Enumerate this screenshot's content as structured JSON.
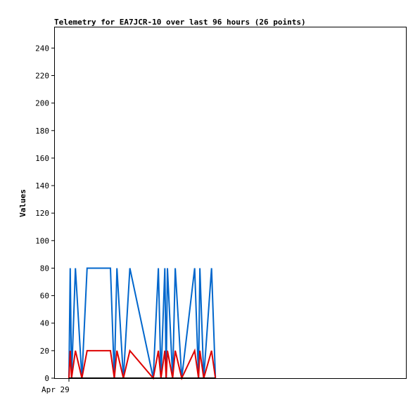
{
  "chart_data": {
    "type": "line",
    "title": "Telemetry for EA7JCR-10 over last 96 hours (26 points)",
    "xlabel": "",
    "ylabel": "Values",
    "ylim": [
      0,
      255
    ],
    "yticks": [
      0,
      20,
      40,
      60,
      80,
      100,
      120,
      140,
      160,
      180,
      200,
      220,
      240
    ],
    "xtick_labels": [
      {
        "label": "Apr 29",
        "x": 0
      }
    ],
    "grid": false,
    "x": [
      0,
      1,
      2,
      5,
      10,
      14,
      32,
      35,
      37,
      42,
      47,
      65,
      69,
      71,
      74,
      75,
      76,
      80,
      82,
      87,
      97,
      100,
      101,
      104,
      110,
      113
    ],
    "series": [
      {
        "color": "#0066cc",
        "values": [
          0,
          80,
          0,
          80,
          0,
          80,
          80,
          0,
          80,
          0,
          80,
          0,
          80,
          0,
          80,
          0,
          80,
          0,
          80,
          0,
          80,
          0,
          80,
          0,
          80,
          0
        ]
      },
      {
        "color": "#dd0000",
        "values": [
          0,
          20,
          0,
          20,
          0,
          20,
          20,
          0,
          20,
          0,
          20,
          0,
          20,
          0,
          20,
          0,
          20,
          0,
          20,
          0,
          20,
          0,
          20,
          0,
          20,
          0
        ]
      },
      {
        "color": "#000000",
        "values": [
          0,
          0,
          0,
          0,
          0,
          0,
          0,
          0,
          0,
          0,
          0,
          0,
          0,
          0,
          0,
          0,
          0,
          0,
          0,
          0,
          0,
          0,
          0,
          0,
          0,
          0
        ]
      }
    ]
  }
}
